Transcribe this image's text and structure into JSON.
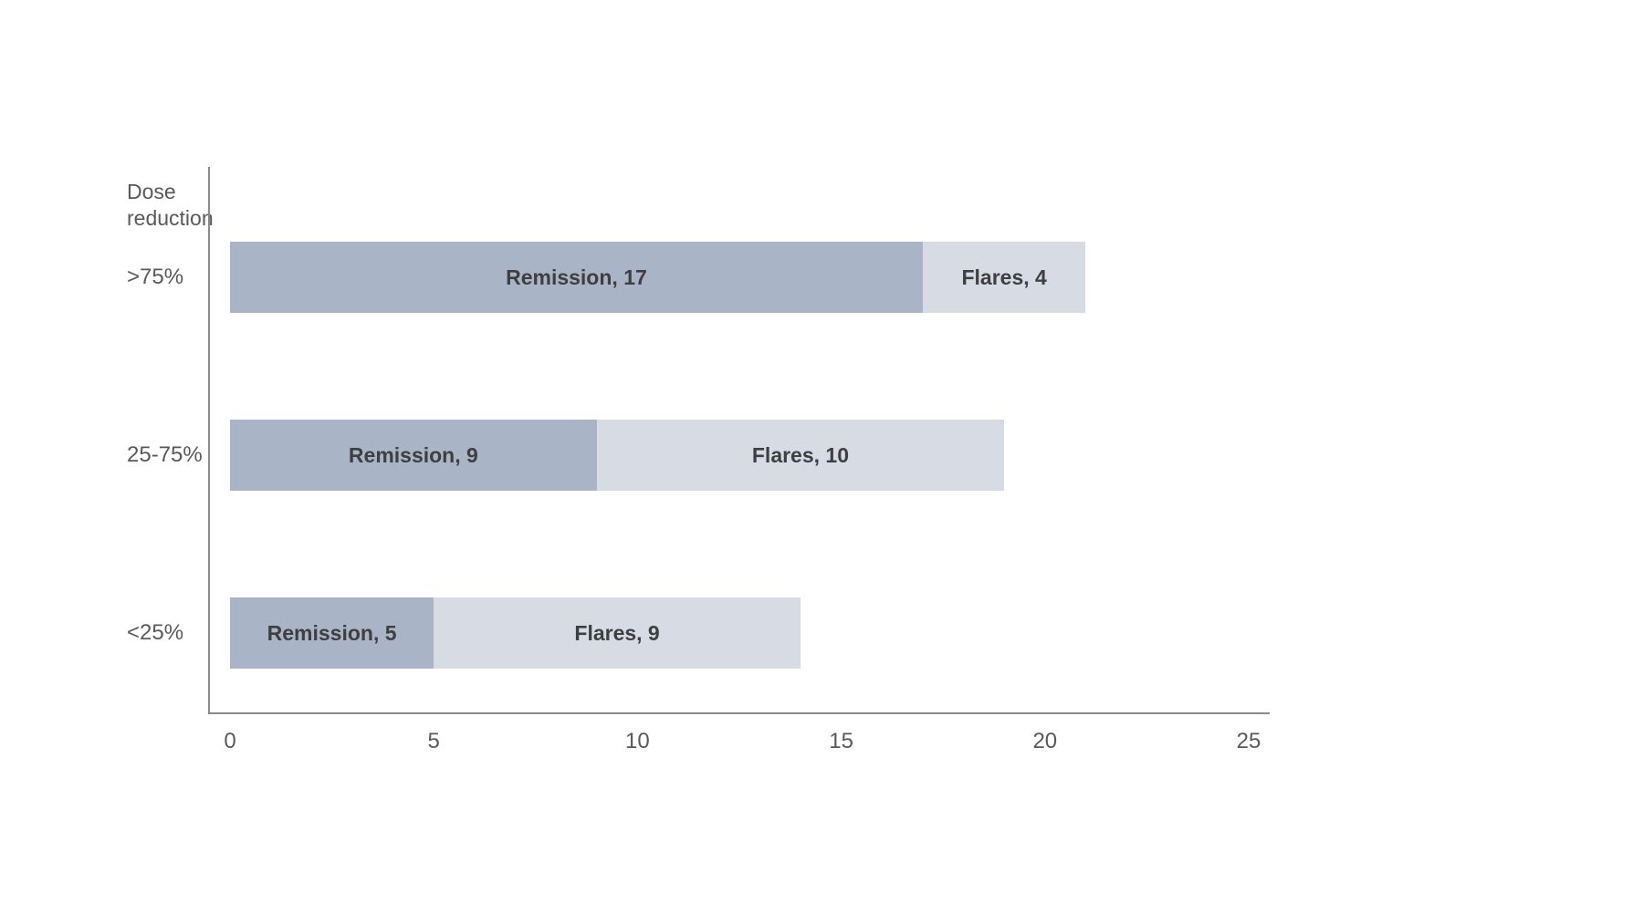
{
  "chart_data": {
    "type": "bar",
    "orientation": "horizontal",
    "stacked": true,
    "title": "",
    "axis_title": "Dose reduction",
    "categories": [
      ">75%",
      "25-75%",
      "<25%"
    ],
    "series": [
      {
        "name": "Remission",
        "values": [
          17,
          9,
          5
        ],
        "color": "#a9b4c6"
      },
      {
        "name": "Flares",
        "values": [
          4,
          10,
          9
        ],
        "color": "#d6dbe4"
      }
    ],
    "data_labels": [
      [
        "Remission, 17",
        "Flares, 4"
      ],
      [
        "Remission, 9",
        "Flares, 10"
      ],
      [
        "Remission, 5",
        "Flares, 9"
      ]
    ],
    "x_ticks": [
      "0",
      "5",
      "10",
      "15",
      "20",
      "25"
    ],
    "xlim": [
      0,
      25
    ],
    "grid": false,
    "legend": "none",
    "colors": {
      "remission_fill": "#a9b4c6",
      "flares_fill": "#d6dbe4",
      "axis_line": "#8a8a8a",
      "axis_text": "#595959",
      "data_label_text": "#3f3f3f",
      "background": "#ffffff"
    }
  }
}
